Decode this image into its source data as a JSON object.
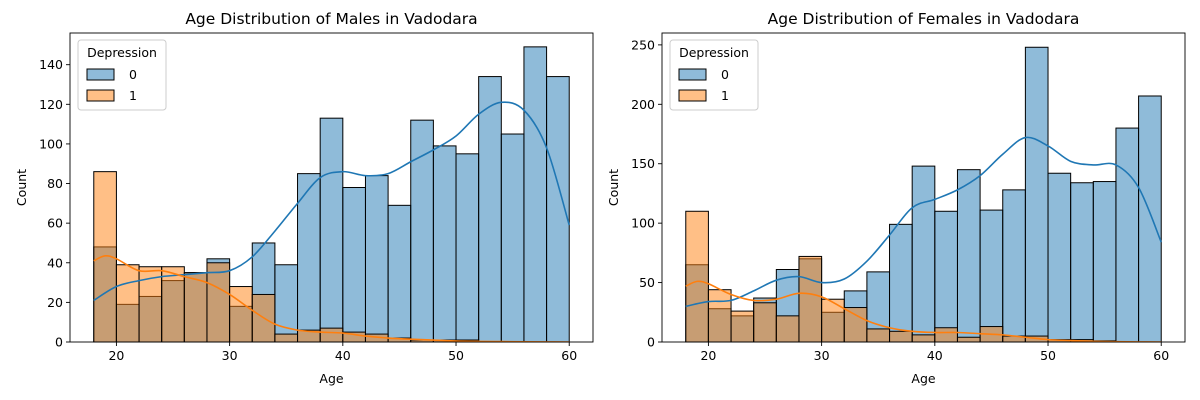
{
  "colors": {
    "series0_fill": "#1f77b4",
    "series1_fill": "#ff7f0e",
    "series0_line": "#1f77b4",
    "series1_line": "#ff7f0e",
    "edge": "#000000"
  },
  "chart_data": [
    {
      "type": "histogram",
      "title": "Age Distribution of Males in Vadodara",
      "xlabel": "Age",
      "ylabel": "Count",
      "xlim": [
        15.9,
        62.1
      ],
      "ylim": [
        0,
        156
      ],
      "xticks": [
        20,
        30,
        40,
        50,
        60
      ],
      "yticks": [
        0,
        20,
        40,
        60,
        80,
        100,
        120,
        140
      ],
      "bins": [
        18,
        20,
        22,
        24,
        26,
        28,
        30,
        32,
        34,
        36,
        38,
        40,
        42,
        44,
        46,
        48,
        50,
        52,
        54,
        56,
        58,
        60
      ],
      "legend": {
        "title": "Depression",
        "location": "upper left",
        "entries": [
          "0",
          "1"
        ]
      },
      "series": [
        {
          "name": "0",
          "values": [
            48,
            19,
            23,
            31,
            35,
            42,
            18,
            50,
            39,
            85,
            113,
            78,
            84,
            69,
            112,
            99,
            95,
            134,
            105,
            149,
            134
          ]
        },
        {
          "name": "1",
          "values": [
            86,
            39,
            38,
            38,
            35,
            40,
            28,
            24,
            4,
            6,
            7,
            5,
            4,
            2,
            1,
            1,
            1,
            0,
            0,
            0,
            0
          ]
        }
      ],
      "kde": [
        {
          "name": "0",
          "x": [
            18,
            20,
            22,
            24,
            26,
            28,
            30,
            32,
            34,
            36,
            38,
            40,
            42,
            44,
            46,
            48,
            50,
            52,
            54,
            56,
            58,
            60
          ],
          "y": [
            21,
            28,
            31,
            33,
            34,
            35,
            36,
            43,
            56,
            70,
            83,
            86,
            84,
            85,
            91,
            97,
            104,
            115,
            121,
            117,
            98,
            59
          ]
        },
        {
          "name": "1",
          "x": [
            18,
            19,
            20,
            22,
            24,
            26,
            28,
            30,
            32,
            34,
            36,
            38,
            40,
            42,
            44,
            46,
            48,
            50,
            52,
            54,
            56,
            58,
            60
          ],
          "y": [
            41,
            43.5,
            42,
            36,
            36,
            33,
            30,
            24,
            16,
            9,
            6,
            5,
            4.5,
            3,
            2,
            1.4,
            1,
            0.5,
            0.3,
            0.2,
            0.1,
            0.05,
            0
          ]
        }
      ]
    },
    {
      "type": "histogram",
      "title": "Age Distribution of Females in Vadodara",
      "xlabel": "Age",
      "ylabel": "Count",
      "xlim": [
        15.9,
        62.1
      ],
      "ylim": [
        0,
        260
      ],
      "xticks": [
        20,
        30,
        40,
        50,
        60
      ],
      "yticks": [
        0,
        50,
        100,
        150,
        200,
        250
      ],
      "bins": [
        18,
        20,
        22,
        24,
        26,
        28,
        30,
        32,
        34,
        36,
        38,
        40,
        42,
        44,
        46,
        48,
        50,
        52,
        54,
        56,
        58,
        60
      ],
      "legend": {
        "title": "Depression",
        "location": "upper left",
        "entries": [
          "0",
          "1"
        ]
      },
      "series": [
        {
          "name": "0",
          "values": [
            65,
            28,
            22,
            37,
            61,
            70,
            25,
            43,
            59,
            99,
            148,
            110,
            145,
            111,
            128,
            248,
            142,
            134,
            135,
            180,
            207
          ]
        },
        {
          "name": "1",
          "values": [
            110,
            44,
            26,
            33,
            22,
            72,
            36,
            29,
            11,
            9,
            6,
            12,
            4,
            13,
            5,
            5,
            2,
            2,
            1,
            0,
            0
          ]
        }
      ],
      "kde": [
        {
          "name": "0",
          "x": [
            18,
            20,
            22,
            24,
            26,
            28,
            30,
            32,
            34,
            36,
            38,
            40,
            42,
            44,
            46,
            48,
            50,
            52,
            54,
            56,
            58,
            60
          ],
          "y": [
            30,
            34,
            35,
            43,
            52,
            55,
            50,
            53,
            68,
            90,
            113,
            120,
            128,
            140,
            158,
            172,
            165,
            152,
            149,
            149,
            130,
            84
          ]
        },
        {
          "name": "1",
          "x": [
            18,
            19,
            20,
            22,
            24,
            26,
            28,
            30,
            32,
            34,
            36,
            38,
            40,
            42,
            44,
            46,
            48,
            50,
            52,
            54,
            56,
            58,
            60
          ],
          "y": [
            47,
            51,
            49,
            40,
            35,
            36,
            41,
            38,
            28,
            18,
            12,
            9,
            8,
            8,
            7,
            6,
            4,
            2,
            1.2,
            0.6,
            0.3,
            0.1,
            0
          ]
        }
      ]
    }
  ]
}
